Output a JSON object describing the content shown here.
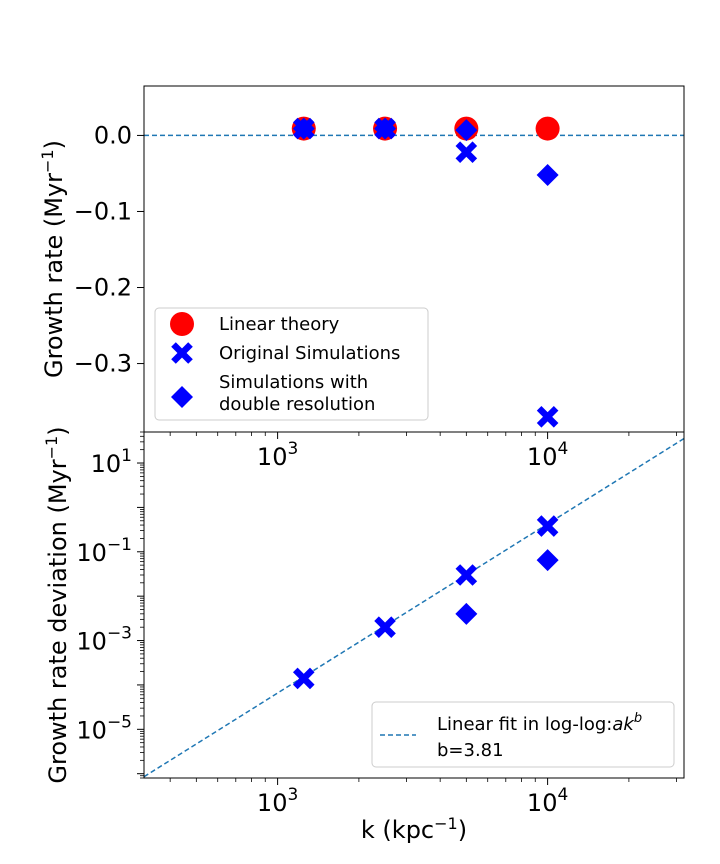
{
  "figure": {
    "xlabel": "k (kpc",
    "xlabel_sup": "−1",
    "xlabel_end": ")",
    "top_ylabel": "Growth rate (Myr",
    "top_ylabel_sup": "−1",
    "top_ylabel_end": ")",
    "bottom_ylabel": "Growth rate deviation (Myr",
    "bottom_ylabel_sup": "−1",
    "bottom_ylabel_end": ")"
  },
  "chart_data": [
    {
      "type": "scatter",
      "panel": "top",
      "xscale": "log",
      "xlim": [
        320,
        32000
      ],
      "ylim": [
        -0.39,
        0.065
      ],
      "x_ticks": [
        {
          "value": 1000,
          "base": "10",
          "exp": "3"
        },
        {
          "value": 10000,
          "base": "10",
          "exp": "4"
        }
      ],
      "y_ticks": [
        {
          "value": 0.0,
          "label": "0.0"
        },
        {
          "value": -0.1,
          "label": "−0.1"
        },
        {
          "value": -0.2,
          "label": "−0.2"
        },
        {
          "value": -0.3,
          "label": "−0.3"
        }
      ],
      "ylabel": "Growth rate (Myr−1)",
      "reference_line": {
        "y": 0.0,
        "style": "dashed",
        "color": "#1f77b4"
      },
      "series": [
        {
          "name": "Linear theory",
          "marker": "circle",
          "color": "#ff0000",
          "x": [
            1250,
            2500,
            5000,
            10000
          ],
          "y": [
            0.009,
            0.009,
            0.009,
            0.009
          ]
        },
        {
          "name": "Original Simulations",
          "marker": "x",
          "color": "#0000ff",
          "x": [
            1250,
            2500,
            5000,
            10000
          ],
          "y": [
            0.009,
            0.009,
            -0.022,
            -0.37
          ]
        },
        {
          "name": "Simulations with\ndouble resolution",
          "marker": "diamond",
          "color": "#0000ff",
          "x": [
            1250,
            2500,
            5000,
            10000
          ],
          "y": [
            0.009,
            0.009,
            0.007,
            -0.052
          ]
        }
      ],
      "legend": {
        "position": "lower-left",
        "entries": [
          {
            "marker": "circle",
            "color": "#ff0000",
            "lines": [
              "Linear theory"
            ]
          },
          {
            "marker": "x",
            "color": "#0000ff",
            "lines": [
              "Original Simulations"
            ]
          },
          {
            "marker": "diamond",
            "color": "#0000ff",
            "lines": [
              "Simulations with",
              "double resolution"
            ]
          }
        ]
      }
    },
    {
      "type": "scatter",
      "panel": "bottom",
      "xscale": "log",
      "yscale": "log",
      "xlim": [
        320,
        32000
      ],
      "ylim": [
        8e-07,
        50
      ],
      "x_ticks": [
        {
          "value": 1000,
          "base": "10",
          "exp": "3"
        },
        {
          "value": 10000,
          "base": "10",
          "exp": "4"
        }
      ],
      "y_ticks": [
        {
          "value": 1e-05,
          "base": "10",
          "exp": "−5"
        },
        {
          "value": 0.001,
          "base": "10",
          "exp": "−3"
        },
        {
          "value": 0.1,
          "base": "10",
          "exp": "−1"
        },
        {
          "value": 10,
          "base": "10",
          "exp": "1"
        }
      ],
      "xlabel": "k (kpc−1)",
      "ylabel": "Growth rate deviation (Myr−1)",
      "series": [
        {
          "name": "Original Simulations",
          "marker": "x",
          "color": "#0000ff",
          "x": [
            1250,
            2500,
            5000,
            10000
          ],
          "y": [
            0.00014,
            0.002,
            0.03,
            0.38
          ]
        },
        {
          "name": "Simulations with double resolution",
          "marker": "diamond",
          "color": "#0000ff",
          "x": [
            5000,
            10000
          ],
          "y": [
            0.004,
            0.065
          ]
        }
      ],
      "fit": {
        "a": 2.44e-16,
        "b": 3.81,
        "style": "dashed",
        "color": "#1f77b4"
      },
      "legend": {
        "position": "lower-right",
        "line1": "Linear fit in log-log:",
        "line1_math": "ak",
        "line1_sup": "b",
        "line2": "b=3.81"
      }
    }
  ]
}
